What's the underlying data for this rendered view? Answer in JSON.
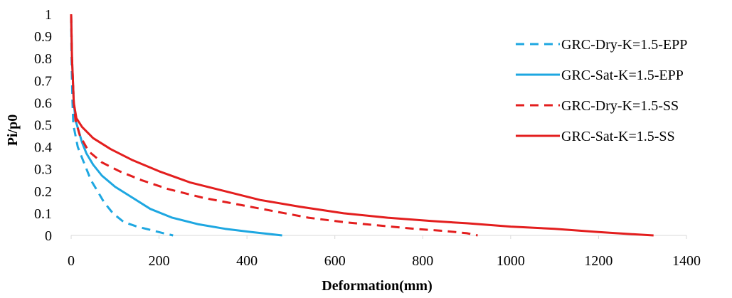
{
  "chart_data": {
    "type": "line",
    "title": "",
    "xlabel": "Deformation(mm)",
    "ylabel": "Pi/p0",
    "xlim": [
      0,
      1400
    ],
    "ylim": [
      0,
      1
    ],
    "x_ticks": [
      "0",
      "200",
      "400",
      "600",
      "800",
      "1000",
      "1200",
      "1400"
    ],
    "y_ticks": [
      "0",
      "0.1",
      "0.2",
      "0.3",
      "0.4",
      "0.5",
      "0.6",
      "0.7",
      "0.8",
      "0.9",
      "1"
    ],
    "grid": false,
    "legend_position": "right",
    "series": [
      {
        "name": "GRC-Dry-K=1.5-EPP",
        "color": "#1EA7E1",
        "dash": true,
        "points": [
          [
            0,
            1
          ],
          [
            1,
            0.8
          ],
          [
            2,
            0.7
          ],
          [
            3,
            0.6
          ],
          [
            5,
            0.5
          ],
          [
            10,
            0.45
          ],
          [
            15,
            0.4
          ],
          [
            25,
            0.35
          ],
          [
            35,
            0.3
          ],
          [
            45,
            0.25
          ],
          [
            60,
            0.2
          ],
          [
            75,
            0.15
          ],
          [
            95,
            0.1
          ],
          [
            120,
            0.06
          ],
          [
            150,
            0.04
          ],
          [
            180,
            0.025
          ],
          [
            210,
            0.01
          ],
          [
            232,
            0
          ]
        ]
      },
      {
        "name": "GRC-Sat-K=1.5-EPP",
        "color": "#1EA7E1",
        "dash": false,
        "points": [
          [
            0,
            1
          ],
          [
            2,
            0.8
          ],
          [
            4,
            0.7
          ],
          [
            6,
            0.6
          ],
          [
            10,
            0.52
          ],
          [
            16,
            0.48
          ],
          [
            25,
            0.42
          ],
          [
            35,
            0.37
          ],
          [
            50,
            0.32
          ],
          [
            70,
            0.27
          ],
          [
            100,
            0.22
          ],
          [
            140,
            0.17
          ],
          [
            180,
            0.12
          ],
          [
            230,
            0.08
          ],
          [
            290,
            0.05
          ],
          [
            350,
            0.03
          ],
          [
            410,
            0.015
          ],
          [
            480,
            0
          ]
        ]
      },
      {
        "name": "GRC-Dry-K=1.5-SS",
        "color": "#E31E1E",
        "dash": true,
        "points": [
          [
            0,
            1
          ],
          [
            2,
            0.8
          ],
          [
            4,
            0.7
          ],
          [
            6,
            0.6
          ],
          [
            10,
            0.52
          ],
          [
            20,
            0.45
          ],
          [
            40,
            0.38
          ],
          [
            70,
            0.33
          ],
          [
            110,
            0.29
          ],
          [
            160,
            0.25
          ],
          [
            220,
            0.21
          ],
          [
            300,
            0.17
          ],
          [
            380,
            0.14
          ],
          [
            460,
            0.11
          ],
          [
            540,
            0.08
          ],
          [
            620,
            0.06
          ],
          [
            700,
            0.045
          ],
          [
            780,
            0.03
          ],
          [
            850,
            0.02
          ],
          [
            900,
            0.01
          ],
          [
            925,
            0
          ]
        ]
      },
      {
        "name": "GRC-Sat-K=1.5-SS",
        "color": "#E31E1E",
        "dash": false,
        "points": [
          [
            0,
            1
          ],
          [
            2,
            0.8
          ],
          [
            4,
            0.7
          ],
          [
            6,
            0.6
          ],
          [
            12,
            0.53
          ],
          [
            25,
            0.49
          ],
          [
            50,
            0.44
          ],
          [
            90,
            0.39
          ],
          [
            140,
            0.34
          ],
          [
            200,
            0.29
          ],
          [
            270,
            0.24
          ],
          [
            350,
            0.2
          ],
          [
            430,
            0.16
          ],
          [
            520,
            0.13
          ],
          [
            620,
            0.1
          ],
          [
            720,
            0.08
          ],
          [
            820,
            0.065
          ],
          [
            900,
            0.055
          ],
          [
            1000,
            0.04
          ],
          [
            1100,
            0.03
          ],
          [
            1200,
            0.015
          ],
          [
            1280,
            0.005
          ],
          [
            1325,
            0
          ]
        ]
      }
    ]
  }
}
